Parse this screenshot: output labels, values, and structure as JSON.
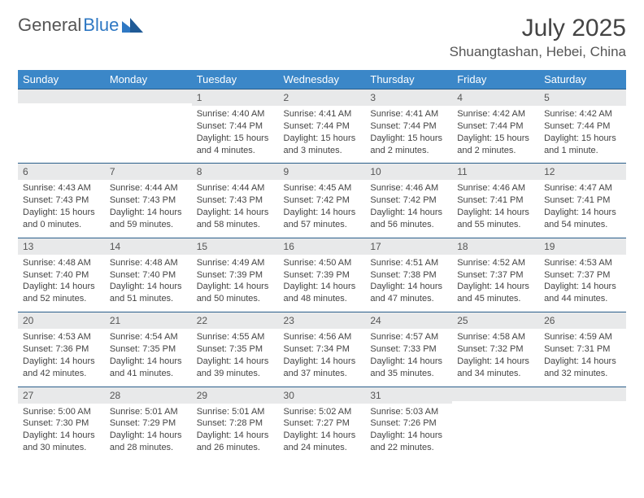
{
  "brand": {
    "part1": "General",
    "part2": "Blue"
  },
  "title": "July 2025",
  "location": "Shuangtashan, Hebei, China",
  "colors": {
    "header_bg": "#3b87c8",
    "header_text": "#ffffff",
    "daynum_bg": "#e8e9ea",
    "day_border": "#2a5e8a",
    "text": "#444444",
    "logo_gray": "#555555",
    "logo_blue": "#2f78c3"
  },
  "weekdays": [
    "Sunday",
    "Monday",
    "Tuesday",
    "Wednesday",
    "Thursday",
    "Friday",
    "Saturday"
  ],
  "weeks": [
    [
      {
        "n": "",
        "sr": "",
        "ss": "",
        "dl": ""
      },
      {
        "n": "",
        "sr": "",
        "ss": "",
        "dl": ""
      },
      {
        "n": "1",
        "sr": "Sunrise: 4:40 AM",
        "ss": "Sunset: 7:44 PM",
        "dl": "Daylight: 15 hours and 4 minutes."
      },
      {
        "n": "2",
        "sr": "Sunrise: 4:41 AM",
        "ss": "Sunset: 7:44 PM",
        "dl": "Daylight: 15 hours and 3 minutes."
      },
      {
        "n": "3",
        "sr": "Sunrise: 4:41 AM",
        "ss": "Sunset: 7:44 PM",
        "dl": "Daylight: 15 hours and 2 minutes."
      },
      {
        "n": "4",
        "sr": "Sunrise: 4:42 AM",
        "ss": "Sunset: 7:44 PM",
        "dl": "Daylight: 15 hours and 2 minutes."
      },
      {
        "n": "5",
        "sr": "Sunrise: 4:42 AM",
        "ss": "Sunset: 7:44 PM",
        "dl": "Daylight: 15 hours and 1 minute."
      }
    ],
    [
      {
        "n": "6",
        "sr": "Sunrise: 4:43 AM",
        "ss": "Sunset: 7:43 PM",
        "dl": "Daylight: 15 hours and 0 minutes."
      },
      {
        "n": "7",
        "sr": "Sunrise: 4:44 AM",
        "ss": "Sunset: 7:43 PM",
        "dl": "Daylight: 14 hours and 59 minutes."
      },
      {
        "n": "8",
        "sr": "Sunrise: 4:44 AM",
        "ss": "Sunset: 7:43 PM",
        "dl": "Daylight: 14 hours and 58 minutes."
      },
      {
        "n": "9",
        "sr": "Sunrise: 4:45 AM",
        "ss": "Sunset: 7:42 PM",
        "dl": "Daylight: 14 hours and 57 minutes."
      },
      {
        "n": "10",
        "sr": "Sunrise: 4:46 AM",
        "ss": "Sunset: 7:42 PM",
        "dl": "Daylight: 14 hours and 56 minutes."
      },
      {
        "n": "11",
        "sr": "Sunrise: 4:46 AM",
        "ss": "Sunset: 7:41 PM",
        "dl": "Daylight: 14 hours and 55 minutes."
      },
      {
        "n": "12",
        "sr": "Sunrise: 4:47 AM",
        "ss": "Sunset: 7:41 PM",
        "dl": "Daylight: 14 hours and 54 minutes."
      }
    ],
    [
      {
        "n": "13",
        "sr": "Sunrise: 4:48 AM",
        "ss": "Sunset: 7:40 PM",
        "dl": "Daylight: 14 hours and 52 minutes."
      },
      {
        "n": "14",
        "sr": "Sunrise: 4:48 AM",
        "ss": "Sunset: 7:40 PM",
        "dl": "Daylight: 14 hours and 51 minutes."
      },
      {
        "n": "15",
        "sr": "Sunrise: 4:49 AM",
        "ss": "Sunset: 7:39 PM",
        "dl": "Daylight: 14 hours and 50 minutes."
      },
      {
        "n": "16",
        "sr": "Sunrise: 4:50 AM",
        "ss": "Sunset: 7:39 PM",
        "dl": "Daylight: 14 hours and 48 minutes."
      },
      {
        "n": "17",
        "sr": "Sunrise: 4:51 AM",
        "ss": "Sunset: 7:38 PM",
        "dl": "Daylight: 14 hours and 47 minutes."
      },
      {
        "n": "18",
        "sr": "Sunrise: 4:52 AM",
        "ss": "Sunset: 7:37 PM",
        "dl": "Daylight: 14 hours and 45 minutes."
      },
      {
        "n": "19",
        "sr": "Sunrise: 4:53 AM",
        "ss": "Sunset: 7:37 PM",
        "dl": "Daylight: 14 hours and 44 minutes."
      }
    ],
    [
      {
        "n": "20",
        "sr": "Sunrise: 4:53 AM",
        "ss": "Sunset: 7:36 PM",
        "dl": "Daylight: 14 hours and 42 minutes."
      },
      {
        "n": "21",
        "sr": "Sunrise: 4:54 AM",
        "ss": "Sunset: 7:35 PM",
        "dl": "Daylight: 14 hours and 41 minutes."
      },
      {
        "n": "22",
        "sr": "Sunrise: 4:55 AM",
        "ss": "Sunset: 7:35 PM",
        "dl": "Daylight: 14 hours and 39 minutes."
      },
      {
        "n": "23",
        "sr": "Sunrise: 4:56 AM",
        "ss": "Sunset: 7:34 PM",
        "dl": "Daylight: 14 hours and 37 minutes."
      },
      {
        "n": "24",
        "sr": "Sunrise: 4:57 AM",
        "ss": "Sunset: 7:33 PM",
        "dl": "Daylight: 14 hours and 35 minutes."
      },
      {
        "n": "25",
        "sr": "Sunrise: 4:58 AM",
        "ss": "Sunset: 7:32 PM",
        "dl": "Daylight: 14 hours and 34 minutes."
      },
      {
        "n": "26",
        "sr": "Sunrise: 4:59 AM",
        "ss": "Sunset: 7:31 PM",
        "dl": "Daylight: 14 hours and 32 minutes."
      }
    ],
    [
      {
        "n": "27",
        "sr": "Sunrise: 5:00 AM",
        "ss": "Sunset: 7:30 PM",
        "dl": "Daylight: 14 hours and 30 minutes."
      },
      {
        "n": "28",
        "sr": "Sunrise: 5:01 AM",
        "ss": "Sunset: 7:29 PM",
        "dl": "Daylight: 14 hours and 28 minutes."
      },
      {
        "n": "29",
        "sr": "Sunrise: 5:01 AM",
        "ss": "Sunset: 7:28 PM",
        "dl": "Daylight: 14 hours and 26 minutes."
      },
      {
        "n": "30",
        "sr": "Sunrise: 5:02 AM",
        "ss": "Sunset: 7:27 PM",
        "dl": "Daylight: 14 hours and 24 minutes."
      },
      {
        "n": "31",
        "sr": "Sunrise: 5:03 AM",
        "ss": "Sunset: 7:26 PM",
        "dl": "Daylight: 14 hours and 22 minutes."
      },
      {
        "n": "",
        "sr": "",
        "ss": "",
        "dl": ""
      },
      {
        "n": "",
        "sr": "",
        "ss": "",
        "dl": ""
      }
    ]
  ]
}
